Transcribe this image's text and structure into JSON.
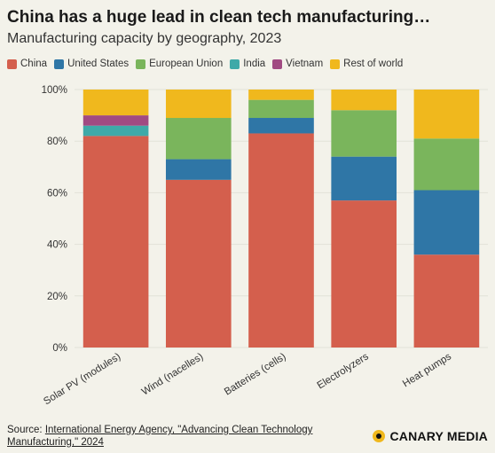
{
  "title": "China has a huge lead in clean tech manufacturing…",
  "subtitle": "Manufacturing capacity by geography, 2023",
  "source": {
    "prefix": "Source: ",
    "link_text": "International Energy Agency, \"Advancing Clean Technology Manufacturing,\" 2024"
  },
  "brand": "CANARY MEDIA",
  "chart_data": {
    "type": "bar",
    "stacked": true,
    "categories": [
      "Solar PV (modules)",
      "Wind (nacelles)",
      "Batteries (cells)",
      "Electrolyzers",
      "Heat pumps"
    ],
    "series": [
      {
        "name": "China",
        "color": "#d45f4d",
        "values": [
          82,
          65,
          83,
          57,
          36
        ]
      },
      {
        "name": "United States",
        "color": "#2f76a6",
        "values": [
          0,
          8,
          6,
          17,
          25
        ]
      },
      {
        "name": "European Union",
        "color": "#7ab55c",
        "values": [
          0,
          16,
          7,
          18,
          20
        ]
      },
      {
        "name": "India",
        "color": "#3fa9a8",
        "values": [
          4,
          0,
          0,
          0,
          0
        ]
      },
      {
        "name": "Vietnam",
        "color": "#a14a82",
        "values": [
          4,
          0,
          0,
          0,
          0
        ]
      },
      {
        "name": "Rest of world",
        "color": "#f0b81d",
        "values": [
          10,
          11,
          4,
          8,
          19
        ]
      }
    ],
    "y_ticks": [
      "0%",
      "20%",
      "40%",
      "60%",
      "80%",
      "100%"
    ],
    "ylim": [
      0,
      100
    ],
    "grid": true,
    "legend_position": "top-left"
  }
}
